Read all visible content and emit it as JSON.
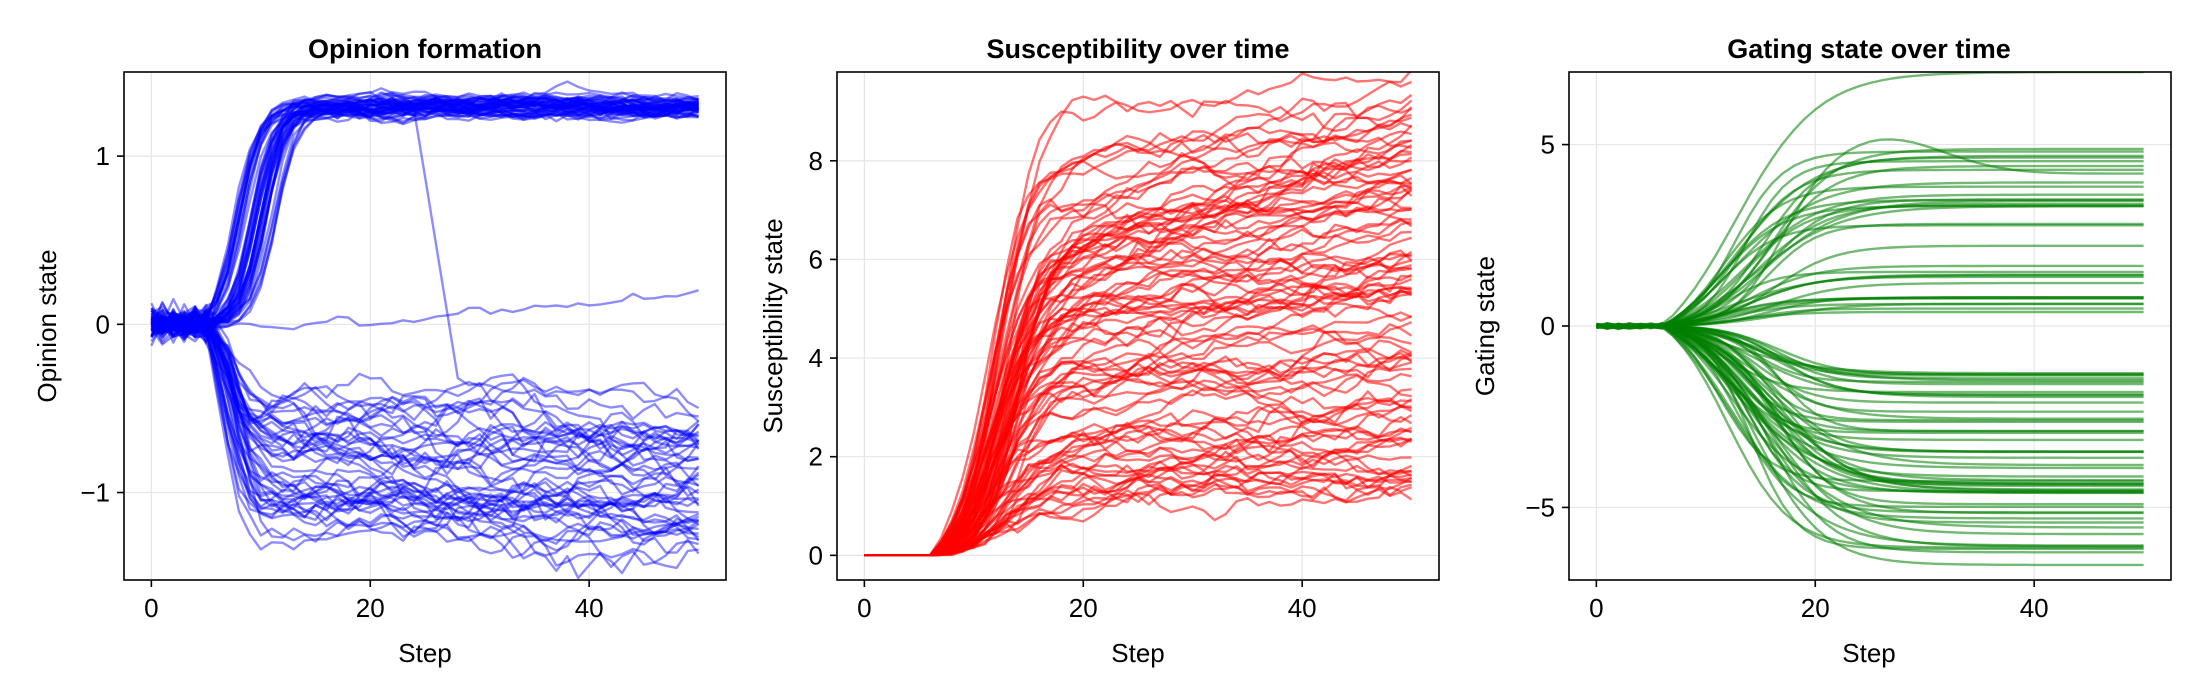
{
  "chart_data": [
    {
      "type": "line",
      "title": "Opinion formation",
      "xlabel": "Step",
      "ylabel": "Opinion state",
      "xlim": [
        -2.5,
        52.5
      ],
      "ylim": [
        -1.52,
        1.5
      ],
      "xticks": [
        0,
        20,
        40
      ],
      "xtick_labels": [
        "0",
        "20",
        "40"
      ],
      "yticks": [
        -1,
        0,
        1
      ],
      "ytick_labels": [
        "−1",
        "0",
        "1"
      ],
      "grid": true,
      "color": "#0000ff",
      "series_count": 100,
      "x_range": [
        0,
        50
      ],
      "summary": {
        "upper_cluster_final": 1.3,
        "lower_cluster_final_range": [
          -1.5,
          -0.25
        ],
        "outlier_final": 0.1,
        "split_step": 5
      }
    },
    {
      "type": "line",
      "title": "Susceptibility over time",
      "xlabel": "Step",
      "ylabel": "Susceptibility state",
      "xlim": [
        -2.5,
        52.5
      ],
      "ylim": [
        -0.5,
        9.8
      ],
      "xticks": [
        0,
        20,
        40
      ],
      "xtick_labels": [
        "0",
        "20",
        "40"
      ],
      "yticks": [
        0,
        2,
        4,
        6,
        8
      ],
      "ytick_labels": [
        "0",
        "2",
        "4",
        "6",
        "8"
      ],
      "grid": true,
      "color": "#ff0000",
      "series_count": 100,
      "x_range": [
        0,
        50
      ],
      "summary": {
        "initial_value": 0,
        "rise_start_step": 6,
        "final_range": [
          1.05,
          9.75
        ]
      }
    },
    {
      "type": "line",
      "title": "Gating state over time",
      "xlabel": "Step",
      "ylabel": "Gating state",
      "xlim": [
        -2.5,
        52.5
      ],
      "ylim": [
        -7.0,
        7.0
      ],
      "xticks": [
        0,
        20,
        40
      ],
      "xtick_labels": [
        "0",
        "20",
        "40"
      ],
      "yticks": [
        -5,
        0,
        5
      ],
      "ytick_labels": [
        "−5",
        "0",
        "5"
      ],
      "grid": true,
      "color": "#008000",
      "series_count": 90,
      "x_range": [
        0,
        50
      ],
      "summary": {
        "initial_value": 0,
        "divergence_step": 6,
        "final_range": [
          -6.8,
          7.0
        ]
      }
    }
  ]
}
